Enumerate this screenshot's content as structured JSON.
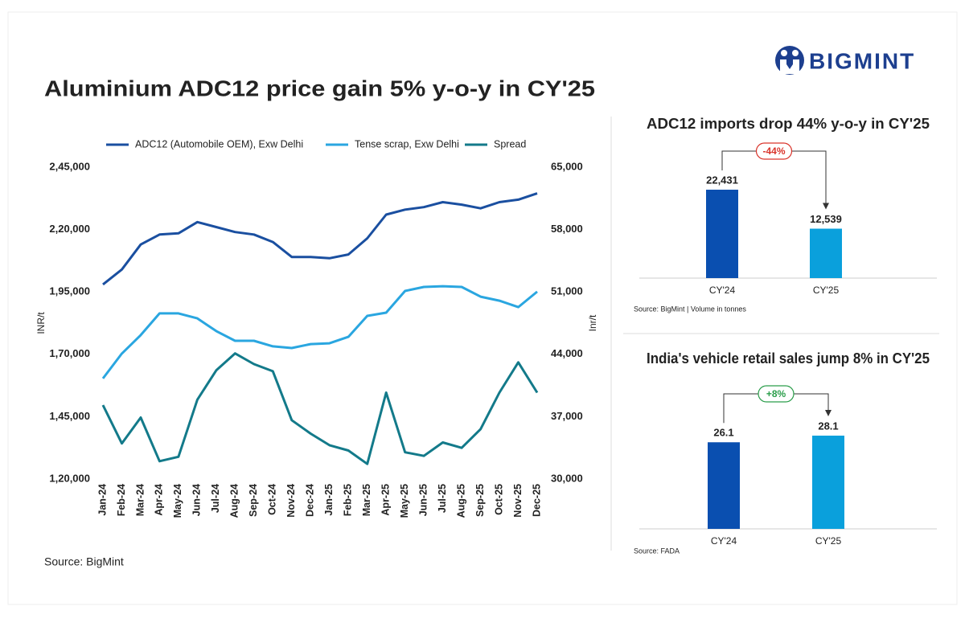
{
  "logo": "BIGMINT",
  "title": "Aluminium ADC12 price gain 5% y-o-y in CY'25",
  "chart_data": [
    {
      "type": "line",
      "source": "Source: BigMint",
      "y_label": "INR/t",
      "y2_label": "Inr/t",
      "categories": [
        "Jan-24",
        "Feb-24",
        "Mar-24",
        "Apr-24",
        "May-24",
        "Jun-24",
        "Jul-24",
        "Aug-24",
        "Sep-24",
        "Oct-24",
        "Nov-24",
        "Dec-24",
        "Jan-25",
        "Feb-25",
        "Mar-25",
        "Apr-25",
        "May-25",
        "Jun-25",
        "Jul-25",
        "Aug-25",
        "Sep-25",
        "Oct-25",
        "Nov-25",
        "Dec-25"
      ],
      "series": [
        {
          "name": "ADC12 (Automobile OEM), Exw Delhi",
          "color": "#1a4fa0",
          "axis": "y",
          "values": [
            198000,
            204000,
            214000,
            218000,
            218500,
            223000,
            221000,
            219000,
            218000,
            215000,
            209000,
            209000,
            208500,
            210000,
            216500,
            226000,
            228000,
            229000,
            231000,
            230000,
            228500,
            231000,
            232000,
            234500
          ]
        },
        {
          "name": "Tense scrap, Exw Delhi",
          "color": "#2aa6e0",
          "axis": "y",
          "values": [
            160300,
            170300,
            177700,
            186400,
            186400,
            184400,
            179300,
            175400,
            175400,
            173200,
            172500,
            174100,
            174400,
            177000,
            185400,
            186700,
            195400,
            197000,
            197300,
            197000,
            193100,
            191500,
            188900,
            195100
          ]
        },
        {
          "name": "Spread",
          "color": "#137a8a",
          "axis": "y2",
          "values": [
            38300,
            34000,
            36900,
            32000,
            32500,
            38900,
            42200,
            44100,
            42900,
            42100,
            36600,
            35100,
            33800,
            33200,
            31700,
            39700,
            33000,
            32600,
            34100,
            33500,
            35600,
            39700,
            43100,
            39700
          ]
        }
      ],
      "ylim": [
        120000,
        245000
      ],
      "yticks": [
        {
          "value": 120000,
          "label": "1,20,000"
        },
        {
          "value": 145000,
          "label": "1,45,000"
        },
        {
          "value": 170000,
          "label": "1,70,000"
        },
        {
          "value": 195000,
          "label": "1,95,000"
        },
        {
          "value": 220000,
          "label": "2,20,000"
        },
        {
          "value": 245000,
          "label": "2,45,000"
        }
      ],
      "y2lim": [
        30000,
        65000
      ],
      "y2ticks": [
        {
          "value": 30000,
          "label": "30,000"
        },
        {
          "value": 37000,
          "label": "37,000"
        },
        {
          "value": 44000,
          "label": "44,000"
        },
        {
          "value": 51000,
          "label": "51,000"
        },
        {
          "value": 58000,
          "label": "58,000"
        },
        {
          "value": 65000,
          "label": "65,000"
        }
      ],
      "grid": false
    },
    {
      "type": "bar",
      "title": "ADC12 imports drop 44% y-o-y in CY'25",
      "categories": [
        "CY'24",
        "CY'25"
      ],
      "values": [
        22431,
        12539
      ],
      "value_labels": [
        "22,431",
        "12,539"
      ],
      "colors": [
        "#0a4fb0",
        "#0aa0dc"
      ],
      "annotation": "-44%",
      "annotation_color": "#d9342b",
      "source": "Source: BigMint | Volume in tonnes"
    },
    {
      "type": "bar",
      "title": "India's vehicle retail sales jump 8% in CY'25",
      "categories": [
        "CY'24",
        "CY'25"
      ],
      "values": [
        26.1,
        28.1
      ],
      "colors": [
        "#0a4fb0",
        "#0aa0dc"
      ],
      "annotation": "+8%",
      "annotation_color": "#2a9d4a",
      "source": "Source: FADA"
    }
  ]
}
